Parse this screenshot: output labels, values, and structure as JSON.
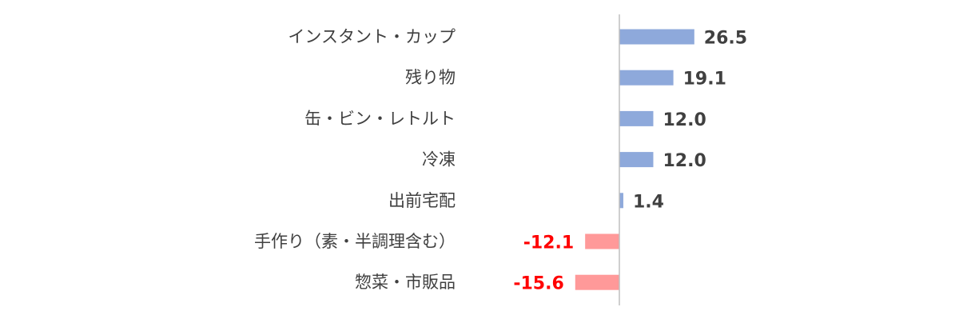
{
  "chart_data": {
    "type": "bar",
    "orientation": "horizontal",
    "categories": [
      "インスタント・カップ",
      "残り物",
      "缶・ビン・レトルト",
      "冷凍",
      "出前宅配",
      "手作り（素・半調理含む）",
      "惣菜・市販品"
    ],
    "values": [
      26.5,
      19.1,
      12.0,
      12.0,
      1.4,
      -12.1,
      -15.6
    ],
    "value_labels": [
      "26.5",
      "19.1",
      "12.0",
      "12.0",
      "1.4",
      "-12.1",
      "-15.6"
    ],
    "xlim": [
      -20,
      50
    ],
    "grid": false,
    "legend": "none",
    "colors": {
      "positive_bar": "#8EA9DB",
      "negative_bar": "#FF9999",
      "positive_label": "#404040",
      "negative_label": "#FF0000",
      "axis": "#BFBFBF",
      "category_text": "#404040"
    }
  }
}
